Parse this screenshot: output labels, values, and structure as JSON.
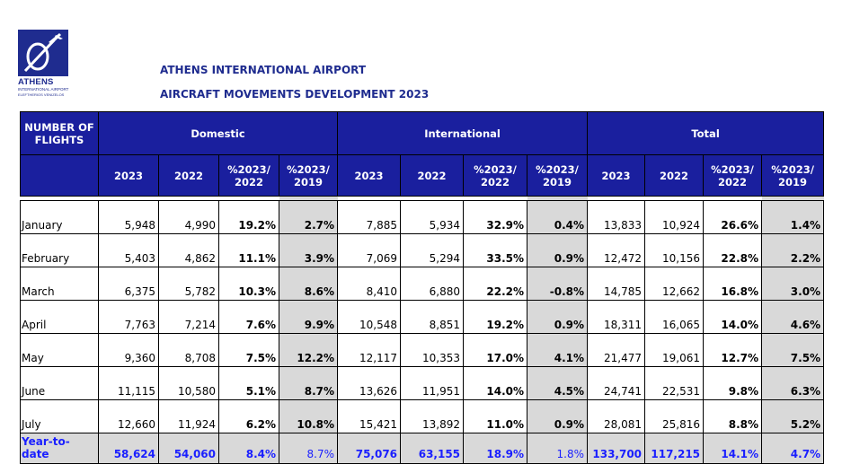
{
  "logo": {
    "brand": "ATHENS",
    "line1": "INTERNATIONAL AIRPORT",
    "line2": "ELEFTHERIOS VENIZELOS"
  },
  "header": {
    "title": "ATHENS INTERNATIONAL AIRPORT",
    "subtitle": "AIRCRAFT MOVEMENTS DEVELOPMENT 2023"
  },
  "table": {
    "row_label_header": "NUMBER OF FLIGHTS",
    "groups": [
      "Domestic",
      "International",
      "Total"
    ],
    "sub_headers": [
      "2023",
      "2022",
      "%2023/ 2022",
      "%2023/ 2019"
    ],
    "rows": [
      {
        "month": "January",
        "d": [
          "5,948",
          "4,990",
          "19.2%",
          "2.7%"
        ],
        "i": [
          "7,885",
          "5,934",
          "32.9%",
          "0.4%"
        ],
        "t": [
          "13,833",
          "10,924",
          "26.6%",
          "1.4%"
        ]
      },
      {
        "month": "February",
        "d": [
          "5,403",
          "4,862",
          "11.1%",
          "3.9%"
        ],
        "i": [
          "7,069",
          "5,294",
          "33.5%",
          "0.9%"
        ],
        "t": [
          "12,472",
          "10,156",
          "22.8%",
          "2.2%"
        ]
      },
      {
        "month": "March",
        "d": [
          "6,375",
          "5,782",
          "10.3%",
          "8.6%"
        ],
        "i": [
          "8,410",
          "6,880",
          "22.2%",
          "-0.8%"
        ],
        "t": [
          "14,785",
          "12,662",
          "16.8%",
          "3.0%"
        ]
      },
      {
        "month": "April",
        "d": [
          "7,763",
          "7,214",
          "7.6%",
          "9.9%"
        ],
        "i": [
          "10,548",
          "8,851",
          "19.2%",
          "0.9%"
        ],
        "t": [
          "18,311",
          "16,065",
          "14.0%",
          "4.6%"
        ]
      },
      {
        "month": "May",
        "d": [
          "9,360",
          "8,708",
          "7.5%",
          "12.2%"
        ],
        "i": [
          "12,117",
          "10,353",
          "17.0%",
          "4.1%"
        ],
        "t": [
          "21,477",
          "19,061",
          "12.7%",
          "7.5%"
        ]
      },
      {
        "month": "June",
        "d": [
          "11,115",
          "10,580",
          "5.1%",
          "8.7%"
        ],
        "i": [
          "13,626",
          "11,951",
          "14.0%",
          "4.5%"
        ],
        "t": [
          "24,741",
          "22,531",
          "9.8%",
          "6.3%"
        ]
      },
      {
        "month": "July",
        "d": [
          "12,660",
          "11,924",
          "6.2%",
          "10.8%"
        ],
        "i": [
          "15,421",
          "13,892",
          "11.0%",
          "0.9%"
        ],
        "t": [
          "28,081",
          "25,816",
          "8.8%",
          "5.2%"
        ]
      }
    ],
    "total": {
      "month": "Year-to-date",
      "d": [
        "58,624",
        "54,060",
        "8.4%",
        "8.7%"
      ],
      "i": [
        "75,076",
        "63,155",
        "18.9%",
        "1.8%"
      ],
      "t": [
        "133,700",
        "117,215",
        "14.1%",
        "4.7%"
      ]
    }
  },
  "colors": {
    "header_bg": "#1a1f9e",
    "title": "#1f2c8f",
    "total_text": "#1a1fff",
    "shade": "#d9d9d9"
  }
}
